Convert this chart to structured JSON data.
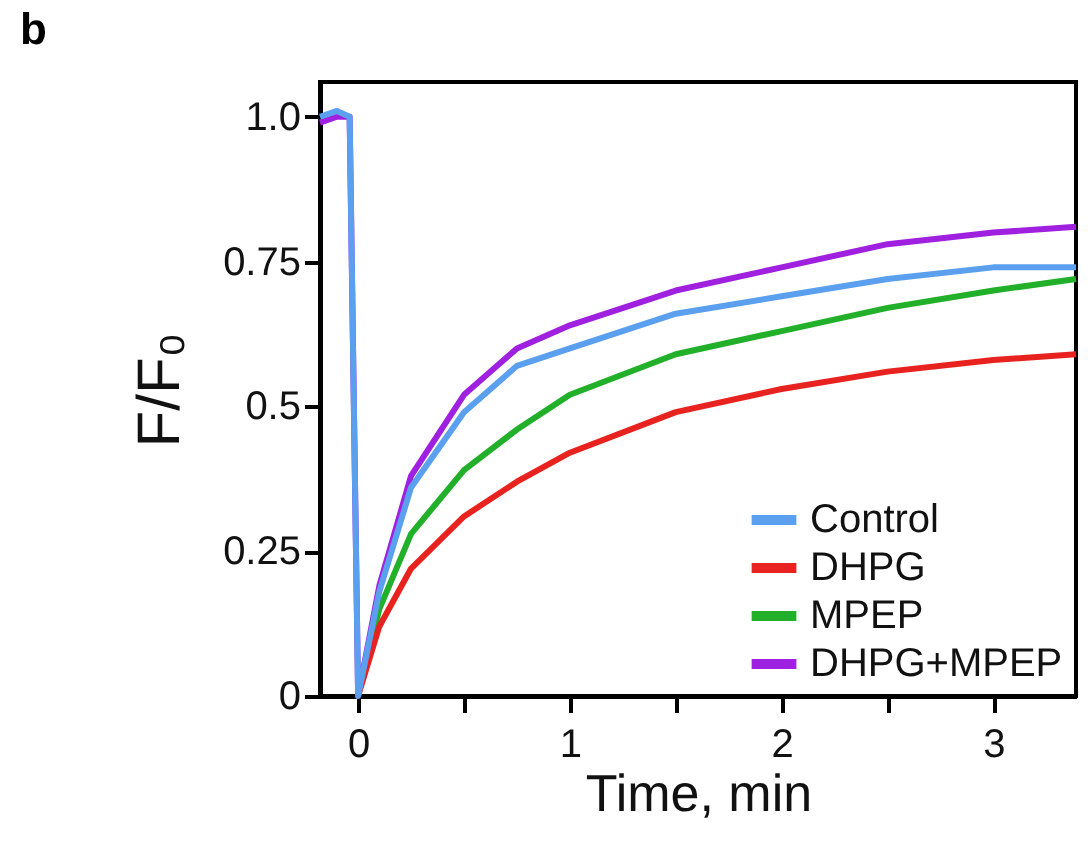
{
  "chart_data": {
    "type": "line",
    "title": "b",
    "xlabel": "Time, min",
    "ylabel": "F/F₀",
    "xlim": [
      -0.18,
      3.39
    ],
    "ylim": [
      0,
      1.06
    ],
    "xticks": [
      0,
      {
        "value": 0.5,
        "label": null
      },
      1,
      {
        "value": 1.5,
        "label": null
      },
      2,
      {
        "value": 2.5,
        "label": null
      },
      3
    ],
    "yticks": [
      0,
      0.25,
      0.5,
      0.75,
      {
        "value": 1,
        "label": "1.0"
      }
    ],
    "grid": false,
    "legend": "bottom right",
    "marker": "none",
    "line_style": "solid",
    "x": [
      -0.18,
      -0.1,
      -0.04,
      0,
      0.1,
      0.25,
      0.5,
      0.75,
      1,
      1.5,
      2,
      2.5,
      3,
      3.39
    ],
    "series": [
      {
        "name": "DHPG+MPEP",
        "color": "#a020e0",
        "values": [
          0.99,
          1.0,
          1.0,
          0,
          0.19,
          0.38,
          0.52,
          0.6,
          0.64,
          0.7,
          0.74,
          0.78,
          0.8,
          0.81
        ]
      },
      {
        "name": "MPEP",
        "color": "#22b02a",
        "values": [
          null,
          null,
          null,
          0,
          0.15,
          0.28,
          0.39,
          0.46,
          0.52,
          0.59,
          0.63,
          0.67,
          0.7,
          0.72
        ]
      },
      {
        "name": "DHPG",
        "color": "#e8231f",
        "values": [
          null,
          null,
          null,
          0,
          0.12,
          0.22,
          0.31,
          0.37,
          0.42,
          0.49,
          0.53,
          0.56,
          0.58,
          0.59
        ]
      },
      {
        "name": "Control",
        "color": "#5aa0ef",
        "values": [
          1.0,
          1.01,
          1.0,
          0,
          0.18,
          0.36,
          0.49,
          0.57,
          0.6,
          0.66,
          0.69,
          0.72,
          0.74,
          0.74
        ]
      }
    ]
  }
}
